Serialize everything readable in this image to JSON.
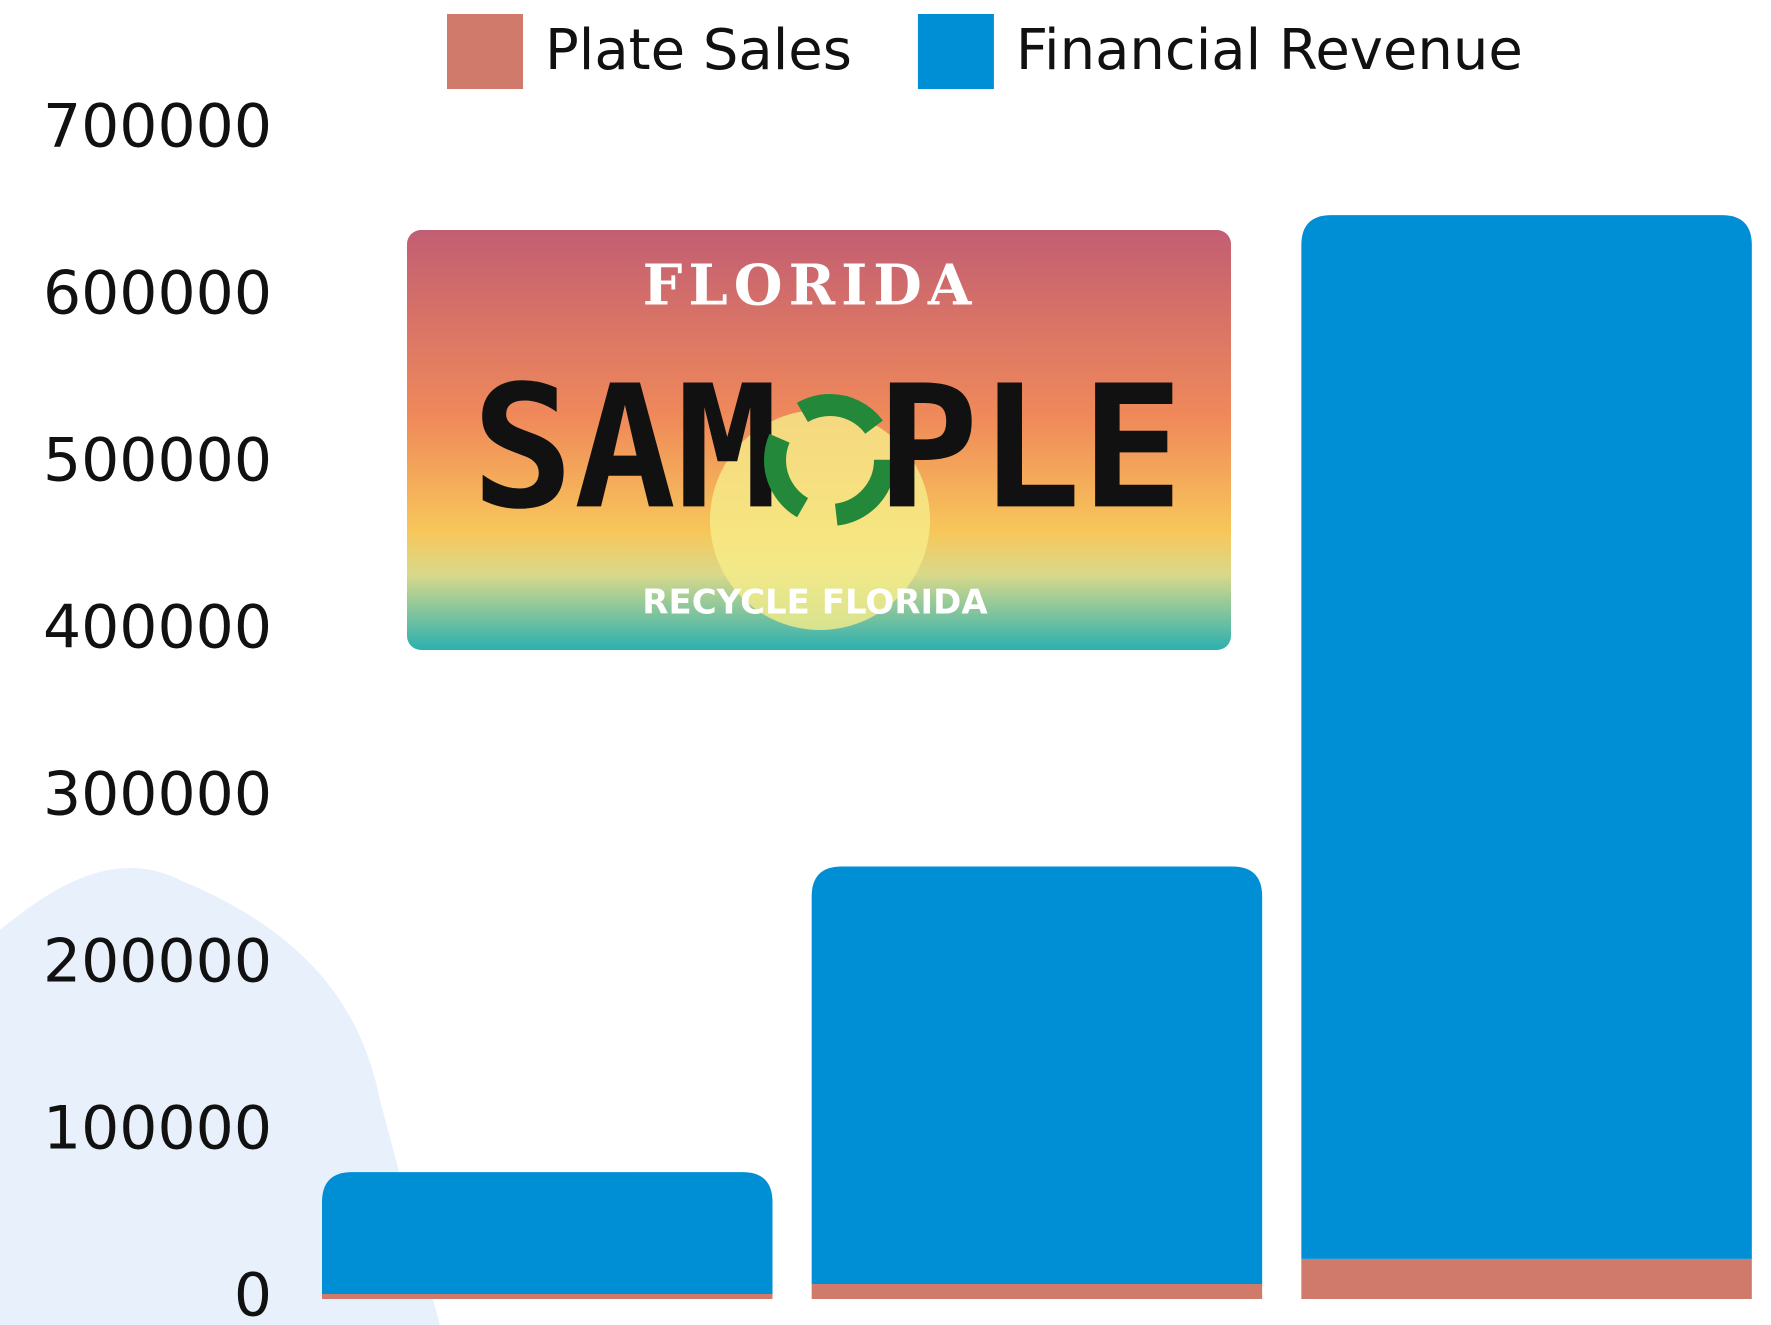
{
  "chart_data": {
    "type": "stacked_bar",
    "categories": [
      null,
      null,
      null
    ],
    "series": [
      {
        "name": "Plate Sales",
        "color": "#cf7a6b",
        "values": [
          3000,
          9000,
          24000
        ]
      },
      {
        "name": "Financial Revenue",
        "color": "#008fd5",
        "values": [
          73000,
          250000,
          625000
        ]
      }
    ],
    "ylim": [
      0,
      700000
    ],
    "yticks": [
      0,
      100000,
      200000,
      300000,
      400000,
      500000,
      600000,
      700000
    ],
    "grid": false,
    "legend": "top",
    "annotations": [
      "FLORIDA",
      "SAM",
      "PLE",
      "RECYCLE FLORIDA"
    ]
  }
}
